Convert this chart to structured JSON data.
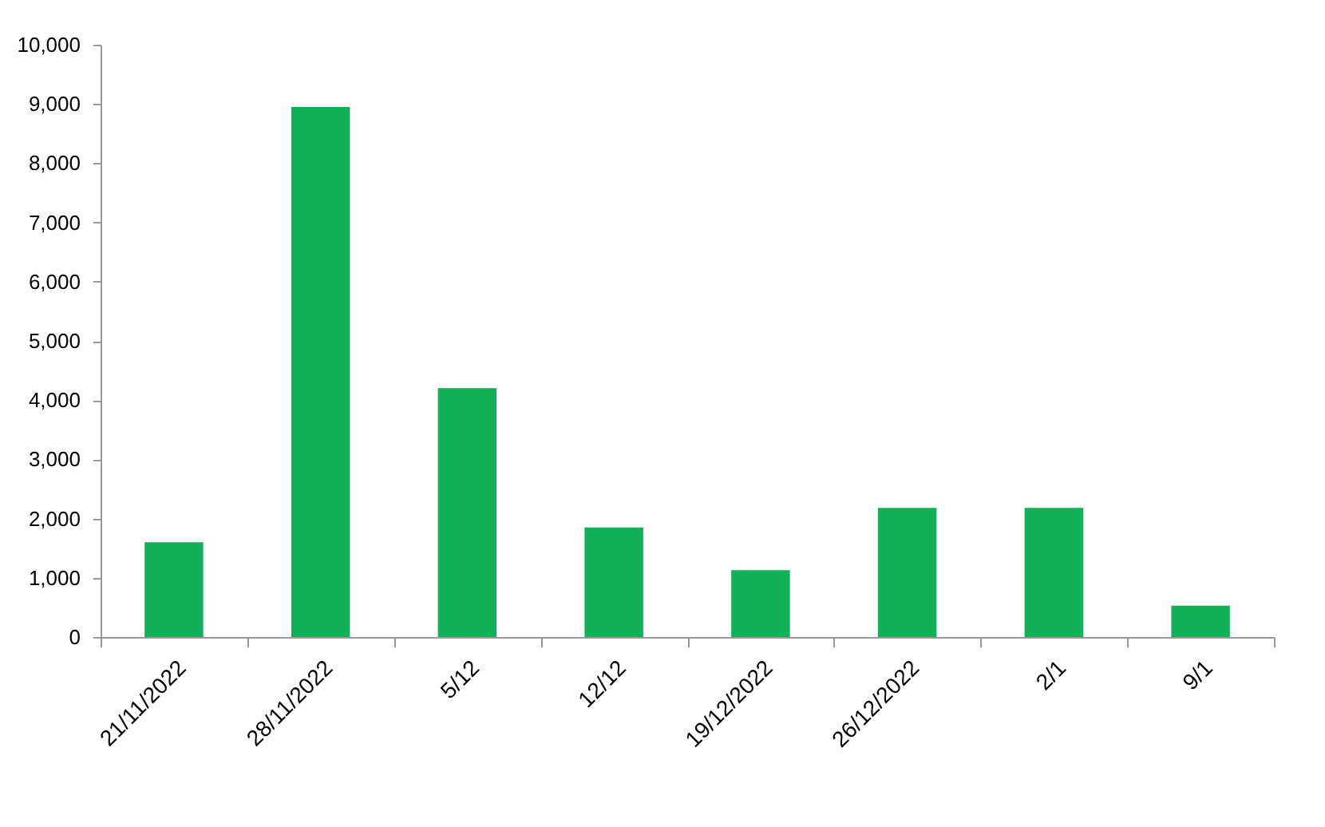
{
  "chart_data": {
    "type": "bar",
    "categories": [
      "21/11/2022",
      "28/11/2022",
      "5/12",
      "12/12",
      "19/12/2022",
      "26/12/2022",
      "2/1",
      "9/1"
    ],
    "values": [
      1600,
      8950,
      4200,
      1850,
      1130,
      2180,
      2180,
      530
    ],
    "color": "#12b057",
    "ylim": [
      0,
      10000
    ],
    "yticks": [
      0,
      {
        "value": 1000,
        "label": "1,000"
      },
      {
        "value": 2000,
        "label": "2,000"
      },
      {
        "value": 3000,
        "label": "3,000"
      },
      {
        "value": 4000,
        "label": "4,000"
      },
      {
        "value": 5000,
        "label": "5,000"
      },
      {
        "value": 6000,
        "label": "6,000"
      },
      {
        "value": 7000,
        "label": "7,000"
      },
      {
        "value": 8000,
        "label": "8,000"
      },
      {
        "value": 9000,
        "label": "9,000"
      },
      {
        "value": 10000,
        "label": "10,000"
      }
    ],
    "grid": false
  }
}
